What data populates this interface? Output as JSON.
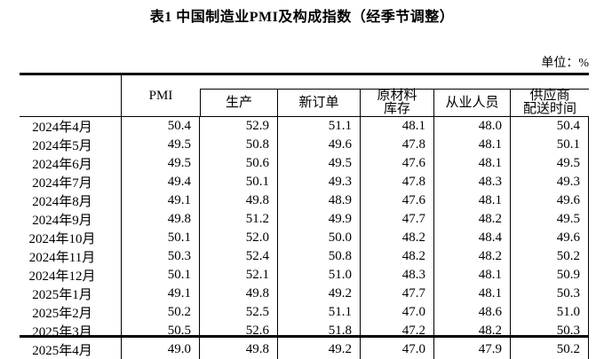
{
  "title": "表1 中国制造业PMI及构成指数（经季节调整）",
  "unit_label": "单位：%",
  "table": {
    "header": {
      "pmi": "PMI",
      "production": "生产",
      "new_orders": "新订单",
      "raw_materials": [
        "原材料",
        "库存"
      ],
      "employment": "从业人员",
      "supplier": [
        "供应商",
        "配送时间"
      ]
    },
    "rows": [
      {
        "period": "2024年4月",
        "values": [
          "50.4",
          "52.9",
          "51.1",
          "48.1",
          "48.0",
          "50.4"
        ]
      },
      {
        "period": "2024年5月",
        "values": [
          "49.5",
          "50.8",
          "49.6",
          "47.8",
          "48.1",
          "50.1"
        ]
      },
      {
        "period": "2024年6月",
        "values": [
          "49.5",
          "50.6",
          "49.5",
          "47.6",
          "48.1",
          "49.5"
        ]
      },
      {
        "period": "2024年7月",
        "values": [
          "49.4",
          "50.1",
          "49.3",
          "47.8",
          "48.3",
          "49.3"
        ]
      },
      {
        "period": "2024年8月",
        "values": [
          "49.1",
          "49.8",
          "48.9",
          "47.6",
          "48.1",
          "49.6"
        ]
      },
      {
        "period": "2024年9月",
        "values": [
          "49.8",
          "51.2",
          "49.9",
          "47.7",
          "48.2",
          "49.5"
        ]
      },
      {
        "period": "2024年10月",
        "values": [
          "50.1",
          "52.0",
          "50.0",
          "48.2",
          "48.4",
          "49.6"
        ]
      },
      {
        "period": "2024年11月",
        "values": [
          "50.3",
          "52.4",
          "50.8",
          "48.2",
          "48.2",
          "50.2"
        ]
      },
      {
        "period": "2024年12月",
        "values": [
          "50.1",
          "52.1",
          "51.0",
          "48.3",
          "48.1",
          "50.9"
        ]
      },
      {
        "period": "2025年1月",
        "values": [
          "49.1",
          "49.8",
          "49.2",
          "47.7",
          "48.1",
          "50.3"
        ]
      },
      {
        "period": "2025年2月",
        "values": [
          "50.2",
          "52.5",
          "51.1",
          "47.0",
          "48.6",
          "51.0"
        ]
      },
      {
        "period": "2025年3月",
        "values": [
          "50.5",
          "52.6",
          "51.8",
          "47.2",
          "48.2",
          "50.3"
        ]
      },
      {
        "period": "2025年4月",
        "values": [
          "49.0",
          "49.8",
          "49.2",
          "47.0",
          "47.9",
          "50.2"
        ]
      }
    ]
  },
  "chart_data": {
    "type": "table",
    "title": "表1 中国制造业PMI及构成指数（经季节调整）",
    "unit": "%",
    "columns": [
      "PMI",
      "生产",
      "新订单",
      "原材料库存",
      "从业人员",
      "供应商配送时间"
    ],
    "rows": [
      [
        "2024年4月",
        50.4,
        52.9,
        51.1,
        48.1,
        48.0,
        50.4
      ],
      [
        "2024年5月",
        49.5,
        50.8,
        49.6,
        47.8,
        48.1,
        50.1
      ],
      [
        "2024年6月",
        49.5,
        50.6,
        49.5,
        47.6,
        48.1,
        49.5
      ],
      [
        "2024年7月",
        49.4,
        50.1,
        49.3,
        47.8,
        48.3,
        49.3
      ],
      [
        "2024年8月",
        49.1,
        49.8,
        48.9,
        47.6,
        48.1,
        49.6
      ],
      [
        "2024年9月",
        49.8,
        51.2,
        49.9,
        47.7,
        48.2,
        49.5
      ],
      [
        "2024年10月",
        50.1,
        52.0,
        50.0,
        48.2,
        48.4,
        49.6
      ],
      [
        "2024年11月",
        50.3,
        52.4,
        50.8,
        48.2,
        48.2,
        50.2
      ],
      [
        "2024年12月",
        50.1,
        52.1,
        51.0,
        48.3,
        48.1,
        50.9
      ],
      [
        "2025年1月",
        49.1,
        49.8,
        49.2,
        47.7,
        48.1,
        50.3
      ],
      [
        "2025年2月",
        50.2,
        52.5,
        51.1,
        47.0,
        48.6,
        51.0
      ],
      [
        "2025年3月",
        50.5,
        52.6,
        51.8,
        47.2,
        48.2,
        50.3
      ],
      [
        "2025年4月",
        49.0,
        49.8,
        49.2,
        47.0,
        47.9,
        50.2
      ]
    ]
  }
}
